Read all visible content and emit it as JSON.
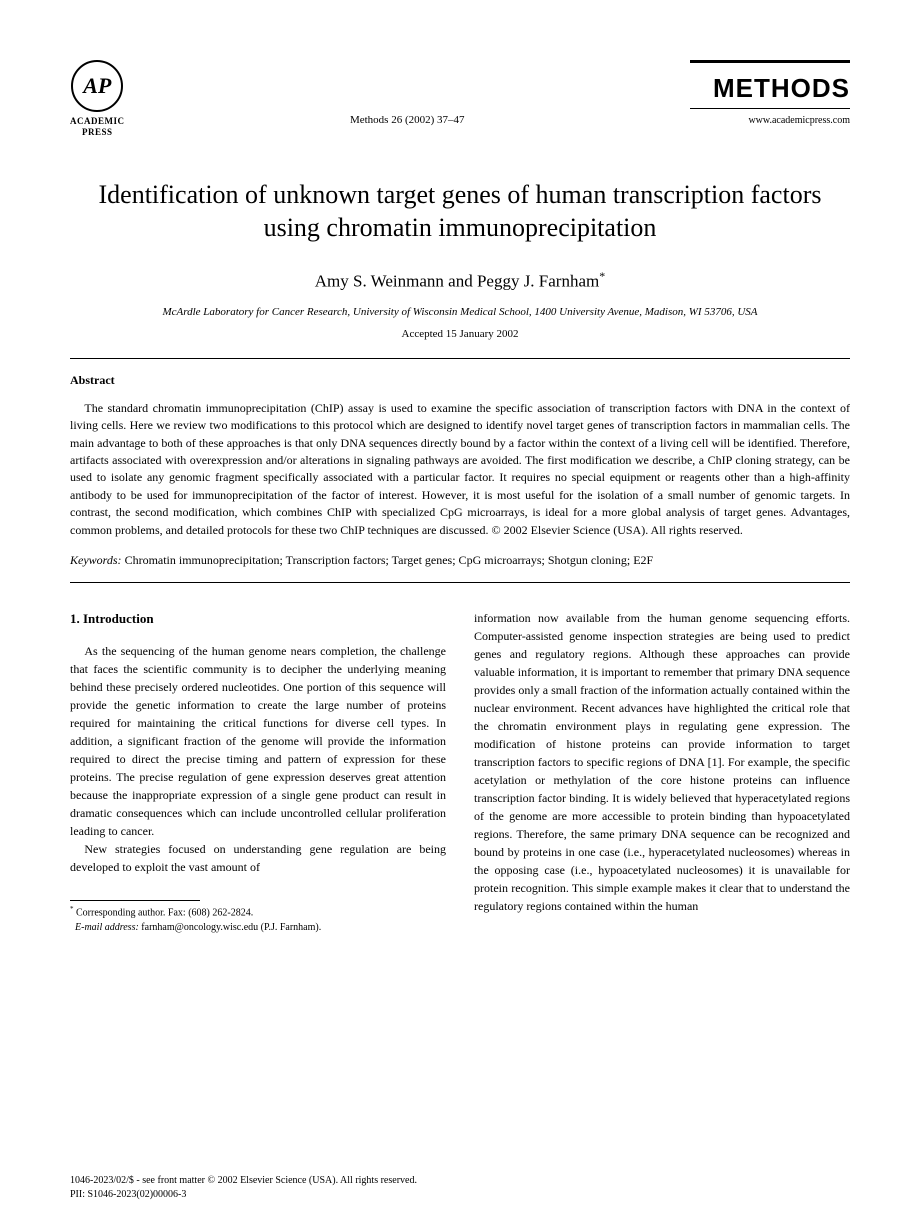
{
  "publisher": {
    "logo_text": "AP",
    "name_line1": "ACADEMIC",
    "name_line2": "PRESS"
  },
  "journal": {
    "reference": "Methods 26 (2002) 37–47",
    "name": "METHODS",
    "url": "www.academicpress.com"
  },
  "title": "Identification of unknown target genes of human transcription factors using chromatin immunoprecipitation",
  "authors": "Amy S. Weinmann and Peggy J. Farnham",
  "author_marker": "*",
  "affiliation": "McArdle Laboratory for Cancer Research, University of Wisconsin Medical School, 1400 University Avenue, Madison, WI 53706, USA",
  "accepted": "Accepted 15 January 2002",
  "abstract": {
    "heading": "Abstract",
    "text": "The standard chromatin immunoprecipitation (ChIP) assay is used to examine the specific association of transcription factors with DNA in the context of living cells. Here we review two modifications to this protocol which are designed to identify novel target genes of transcription factors in mammalian cells. The main advantage to both of these approaches is that only DNA sequences directly bound by a factor within the context of a living cell will be identified. Therefore, artifacts associated with overexpression and/or alterations in signaling pathways are avoided. The first modification we describe, a ChIP cloning strategy, can be used to isolate any genomic fragment specifically associated with a particular factor. It requires no special equipment or reagents other than a high-affinity antibody to be used for immunoprecipitation of the factor of interest. However, it is most useful for the isolation of a small number of genomic targets. In contrast, the second modification, which combines ChIP with specialized CpG microarrays, is ideal for a more global analysis of target genes. Advantages, common problems, and detailed protocols for these two ChIP techniques are discussed. © 2002 Elsevier Science (USA). All rights reserved."
  },
  "keywords": {
    "label": "Keywords:",
    "text": "Chromatin immunoprecipitation; Transcription factors; Target genes; CpG microarrays; Shotgun cloning; E2F"
  },
  "section1": {
    "heading": "1. Introduction",
    "col1_p1": "As the sequencing of the human genome nears completion, the challenge that faces the scientific community is to decipher the underlying meaning behind these precisely ordered nucleotides. One portion of this sequence will provide the genetic information to create the large number of proteins required for maintaining the critical functions for diverse cell types. In addition, a significant fraction of the genome will provide the information required to direct the precise timing and pattern of expression for these proteins. The precise regulation of gene expression deserves great attention because the inappropriate expression of a single gene product can result in dramatic consequences which can include uncontrolled cellular proliferation leading to cancer.",
    "col1_p2": "New strategies focused on understanding gene regulation are being developed to exploit the vast amount of",
    "col2_p1": "information now available from the human genome sequencing efforts. Computer-assisted genome inspection strategies are being used to predict genes and regulatory regions. Although these approaches can provide valuable information, it is important to remember that primary DNA sequence provides only a small fraction of the information actually contained within the nuclear environment. Recent advances have highlighted the critical role that the chromatin environment plays in regulating gene expression. The modification of histone proteins can provide information to target transcription factors to specific regions of DNA [1]. For example, the specific acetylation or methylation of the core histone proteins can influence transcription factor binding. It is widely believed that hyperacetylated regions of the genome are more accessible to protein binding than hypoacetylated regions. Therefore, the same primary DNA sequence can be recognized and bound by proteins in one case (i.e., hyperacetylated nucleosomes) whereas in the opposing case (i.e., hypoacetylated nucleosomes) it is unavailable for protein recognition. This simple example makes it clear that to understand the regulatory regions contained within the human"
  },
  "footnote": {
    "corr": "Corresponding author. Fax: (608) 262-2824.",
    "email_label": "E-mail address:",
    "email": "farnham@oncology.wisc.edu (P.J. Farnham)."
  },
  "footer": {
    "line1": "1046-2023/02/$ - see front matter © 2002 Elsevier Science (USA). All rights reserved.",
    "line2": "PII: S1046-2023(02)00006-3"
  }
}
